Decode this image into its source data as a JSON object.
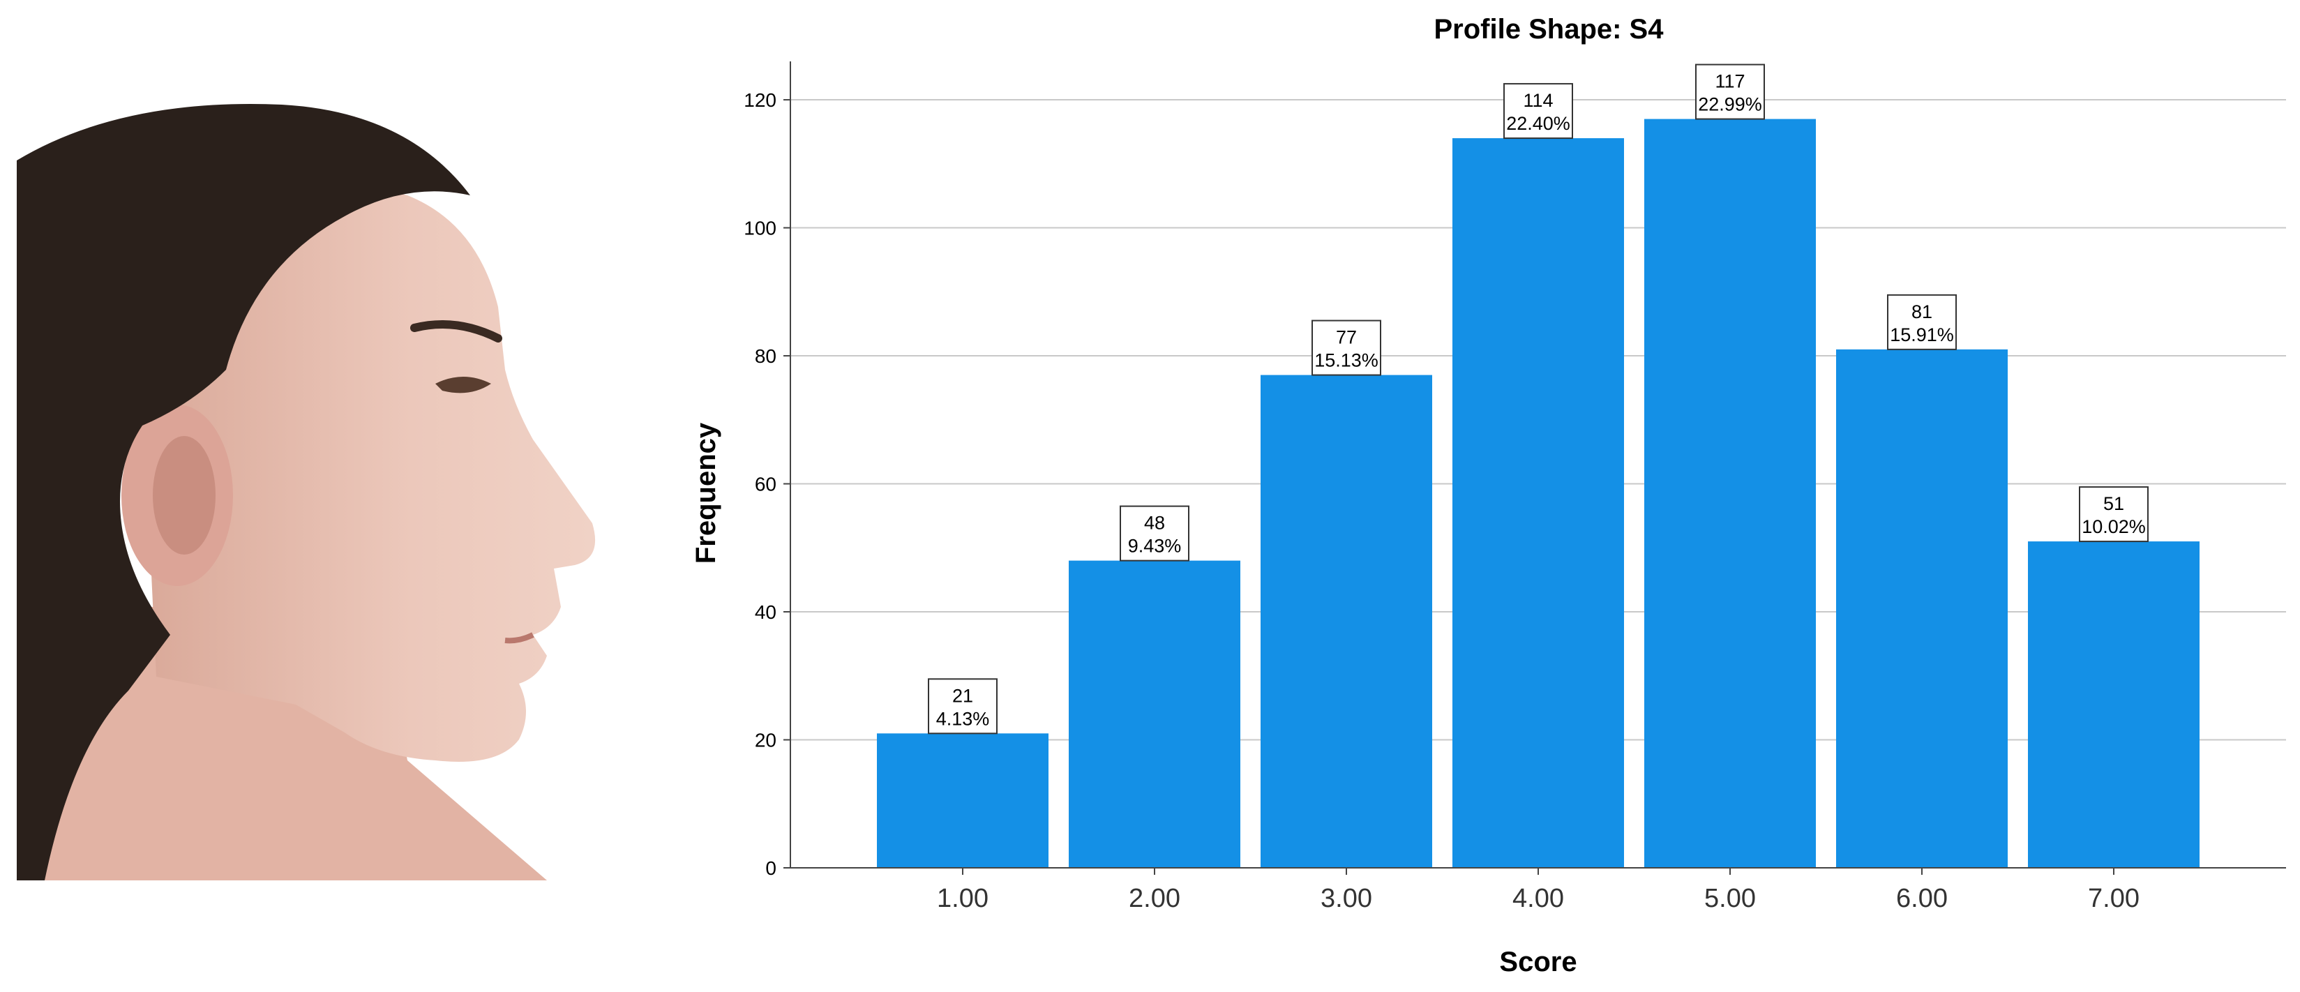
{
  "photo": {
    "subject_icon": "female-profile-face-photo",
    "skin_color": "#e9c3b6",
    "hair_color": "#2a201b"
  },
  "chart_data": {
    "type": "bar",
    "title": "Profile Shape: S4",
    "xlabel": "Score",
    "ylabel": "Frequency",
    "categories": [
      "1.00",
      "2.00",
      "3.00",
      "4.00",
      "5.00",
      "6.00",
      "7.00"
    ],
    "values": [
      21,
      48,
      77,
      114,
      117,
      81,
      51
    ],
    "percent_labels": [
      "4.13%",
      "9.43%",
      "15.13%",
      "22.40%",
      "22.99%",
      "15.91%",
      "10.02%"
    ],
    "ylim": [
      0,
      126
    ],
    "yticks": [
      "0",
      "20",
      "40",
      "60",
      "80",
      "100",
      "120"
    ],
    "grid": true,
    "legend": "none",
    "bar_color": "#1490e6"
  }
}
